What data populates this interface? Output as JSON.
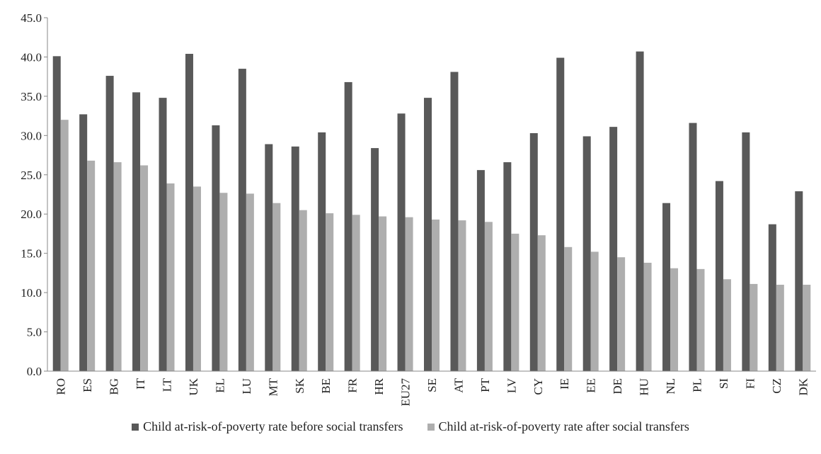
{
  "chart_data": {
    "type": "bar",
    "categories": [
      "RO",
      "ES",
      "BG",
      "IT",
      "LT",
      "UK",
      "EL",
      "LU",
      "MT",
      "SK",
      "BE",
      "FR",
      "HR",
      "EU27",
      "SE",
      "AT",
      "PT",
      "LV",
      "CY",
      "IE",
      "EE",
      "DE",
      "HU",
      "NL",
      "PL",
      "SI",
      "FI",
      "CZ",
      "DK"
    ],
    "series": [
      {
        "name": "Child at-risk-of-poverty rate before social transfers",
        "color": "#595959",
        "values": [
          40.1,
          32.7,
          37.6,
          35.5,
          34.8,
          40.4,
          31.3,
          38.5,
          28.9,
          28.6,
          30.4,
          36.8,
          28.4,
          32.8,
          34.8,
          38.1,
          25.6,
          26.6,
          30.3,
          39.9,
          29.9,
          31.1,
          40.7,
          21.4,
          31.6,
          24.2,
          30.4,
          18.7,
          22.9
        ]
      },
      {
        "name": "Child at-risk-of-poverty rate after social transfers",
        "color": "#aeaeae",
        "values": [
          32.0,
          26.8,
          26.6,
          26.2,
          23.9,
          23.5,
          22.7,
          22.6,
          21.4,
          20.5,
          20.1,
          19.9,
          19.7,
          19.6,
          19.3,
          19.2,
          19.0,
          17.5,
          17.3,
          15.8,
          15.2,
          14.5,
          13.8,
          13.1,
          13.0,
          11.7,
          11.1,
          11.0,
          11.0
        ]
      }
    ],
    "yticks": [
      "0.0",
      "5.0",
      "10.0",
      "15.0",
      "20.0",
      "25.0",
      "30.0",
      "35.0",
      "40.0",
      "45.0"
    ],
    "ylim": [
      0,
      45
    ],
    "title": "",
    "xlabel": "",
    "ylabel": "",
    "grid": false,
    "legend_position": "bottom"
  }
}
